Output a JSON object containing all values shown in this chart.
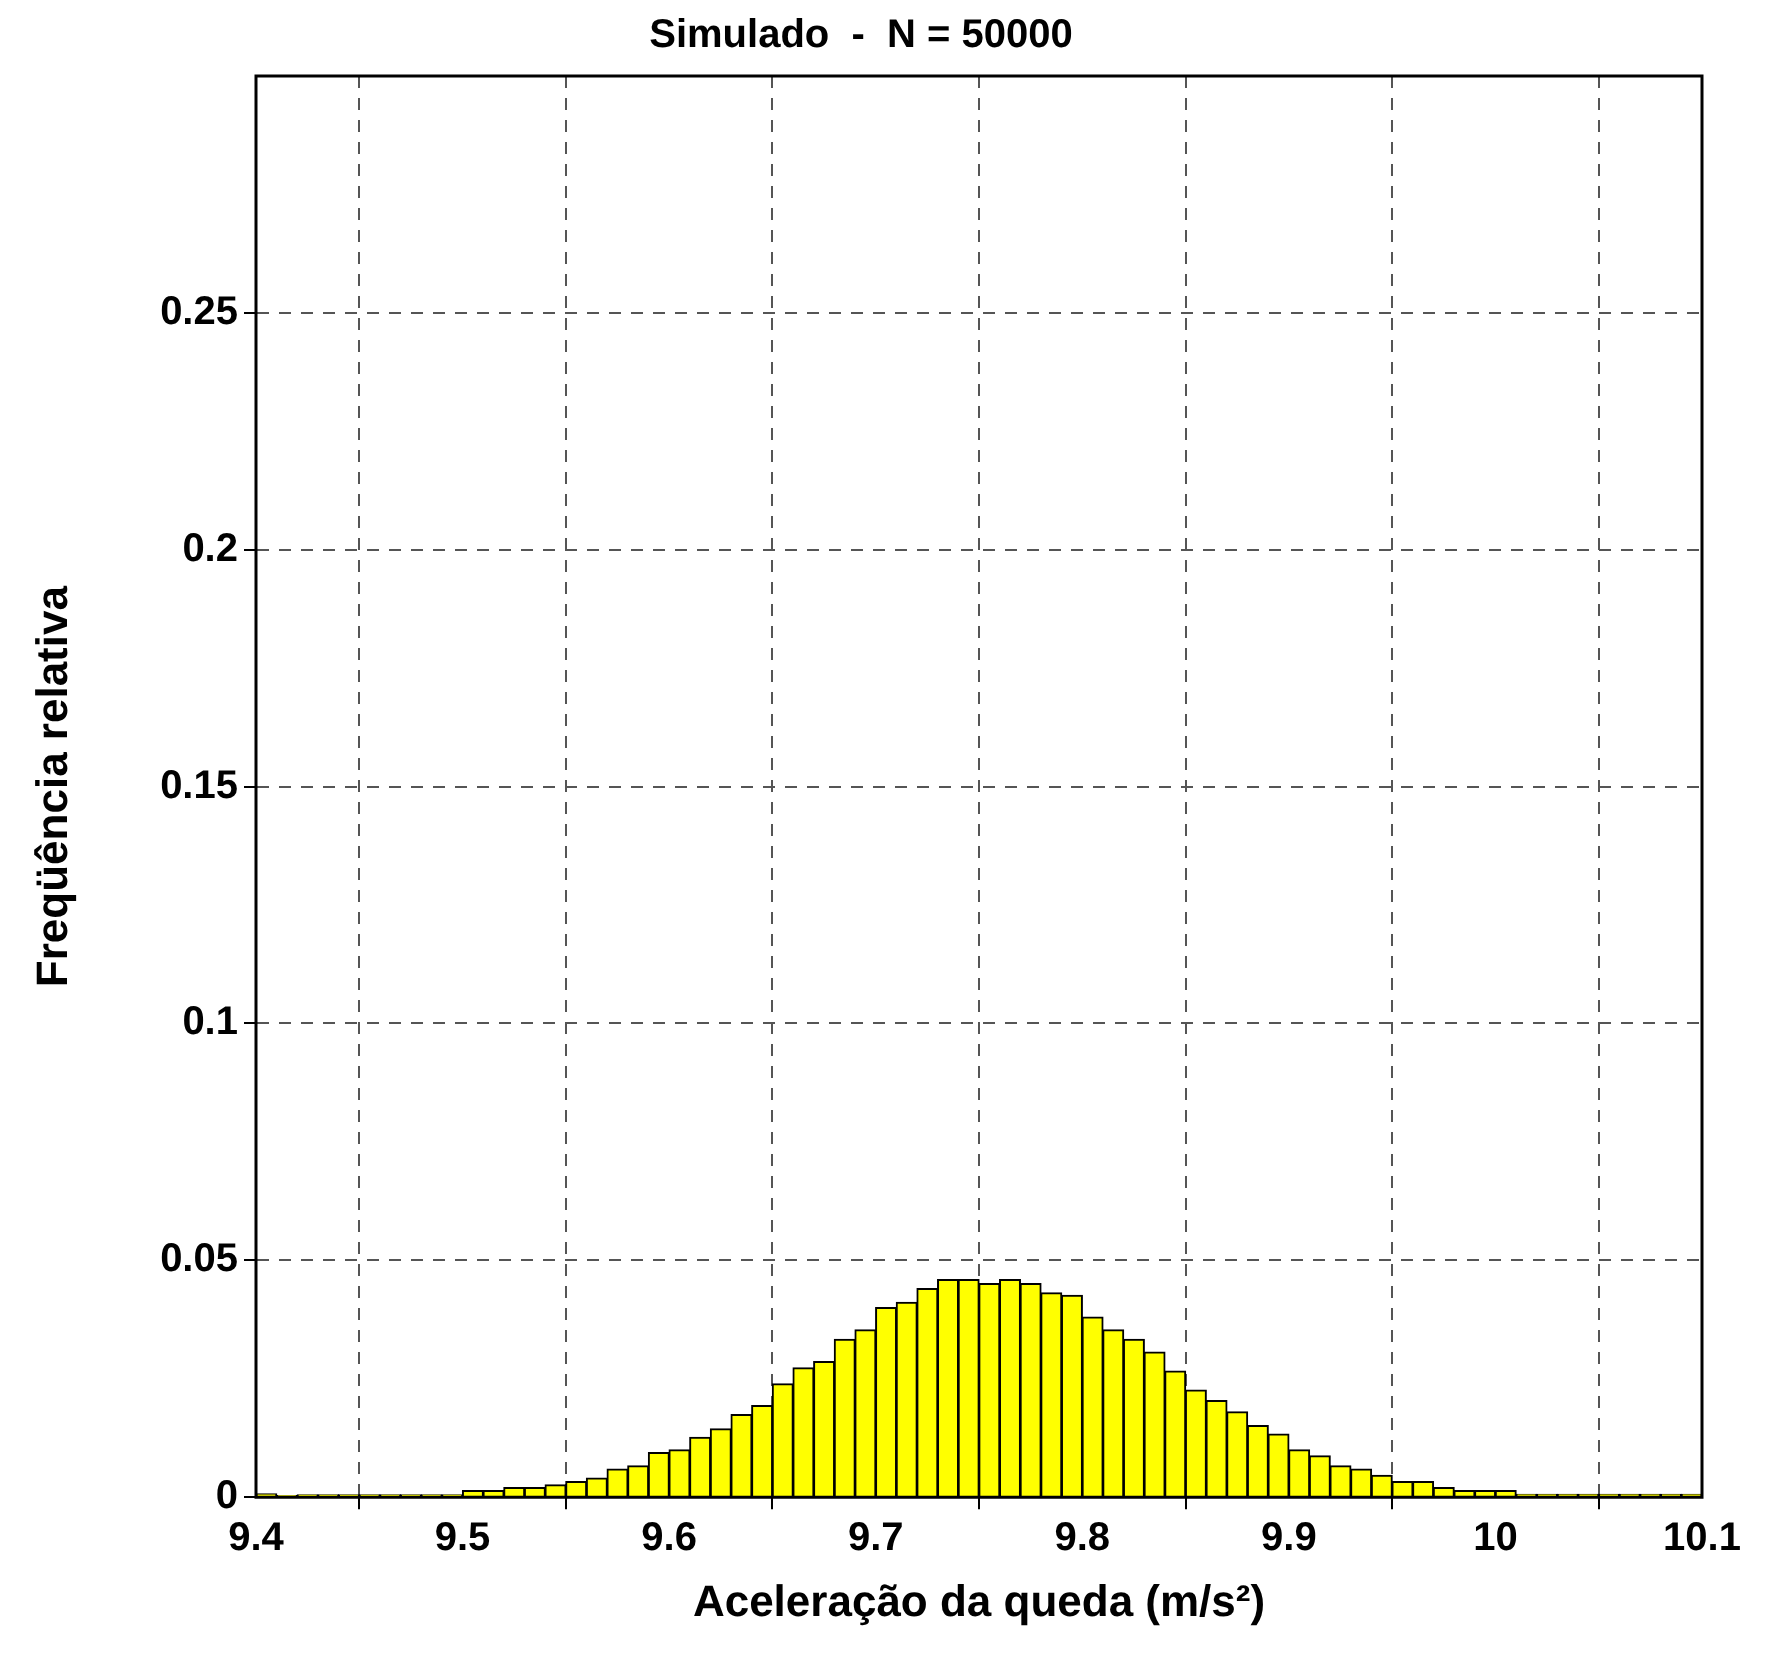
{
  "chart_data": {
    "type": "histogram",
    "title": "Simulado  -  N = 50000",
    "xlabel": "Aceleração da queda (m/s²)",
    "ylabel": "Freqüência relativa",
    "color": "#ffff00",
    "bins": [
      9.4,
      9.41,
      9.42,
      9.43,
      9.44,
      9.45,
      9.46,
      9.47,
      9.48,
      9.49,
      9.5,
      9.51,
      9.52,
      9.53,
      9.54,
      9.55,
      9.56,
      9.57,
      9.58,
      9.59,
      9.6,
      9.61,
      9.62,
      9.63,
      9.64,
      9.65,
      9.66,
      9.67,
      9.68,
      9.69,
      9.7,
      9.71,
      9.72,
      9.73,
      9.74,
      9.75,
      9.76,
      9.77,
      9.78,
      9.79,
      9.8,
      9.81,
      9.82,
      9.83,
      9.84,
      9.85,
      9.86,
      9.87,
      9.88,
      9.89,
      9.9,
      9.91,
      9.92,
      9.93,
      9.94,
      9.95,
      9.96,
      9.97,
      9.98,
      9.99,
      10,
      10.01,
      10.02,
      10.03,
      10.04,
      10.05,
      10.06,
      10.07,
      10.08,
      10.09,
      10.1
    ],
    "values": [
      0.0007,
      0.0003,
      0.0005,
      0.0005,
      0.0005,
      0.0005,
      0.0005,
      0.0005,
      0.0005,
      0.0005,
      0.0014,
      0.0014,
      0.002,
      0.002,
      0.0026,
      0.0033,
      0.004,
      0.0059,
      0.0066,
      0.0094,
      0.01,
      0.0126,
      0.0144,
      0.0174,
      0.0193,
      0.0239,
      0.0273,
      0.0286,
      0.0333,
      0.0353,
      0.04,
      0.0411,
      0.044,
      0.0459,
      0.0459,
      0.0451,
      0.0459,
      0.0451,
      0.0431,
      0.0426,
      0.038,
      0.0353,
      0.0333,
      0.0306,
      0.0266,
      0.0226,
      0.0204,
      0.018,
      0.0151,
      0.0133,
      0.01,
      0.0087,
      0.0066,
      0.0059,
      0.0046,
      0.0033,
      0.0033,
      0.002,
      0.0014,
      0.0014,
      0.0014,
      0.0006,
      0.0006,
      0.0006,
      0.0006,
      0.0006,
      0.0006,
      0.0006,
      0.0006,
      0.0006
    ],
    "xlim": [
      9.4,
      10.1
    ],
    "xticks": [
      9.4,
      9.5,
      9.6,
      9.7,
      9.8,
      9.9,
      10,
      10.1
    ],
    "ylim": [
      0,
      0.3
    ],
    "yticks": [
      0,
      0.05,
      0.1,
      0.15,
      0.2,
      0.25
    ],
    "grid": true,
    "legend": false
  }
}
